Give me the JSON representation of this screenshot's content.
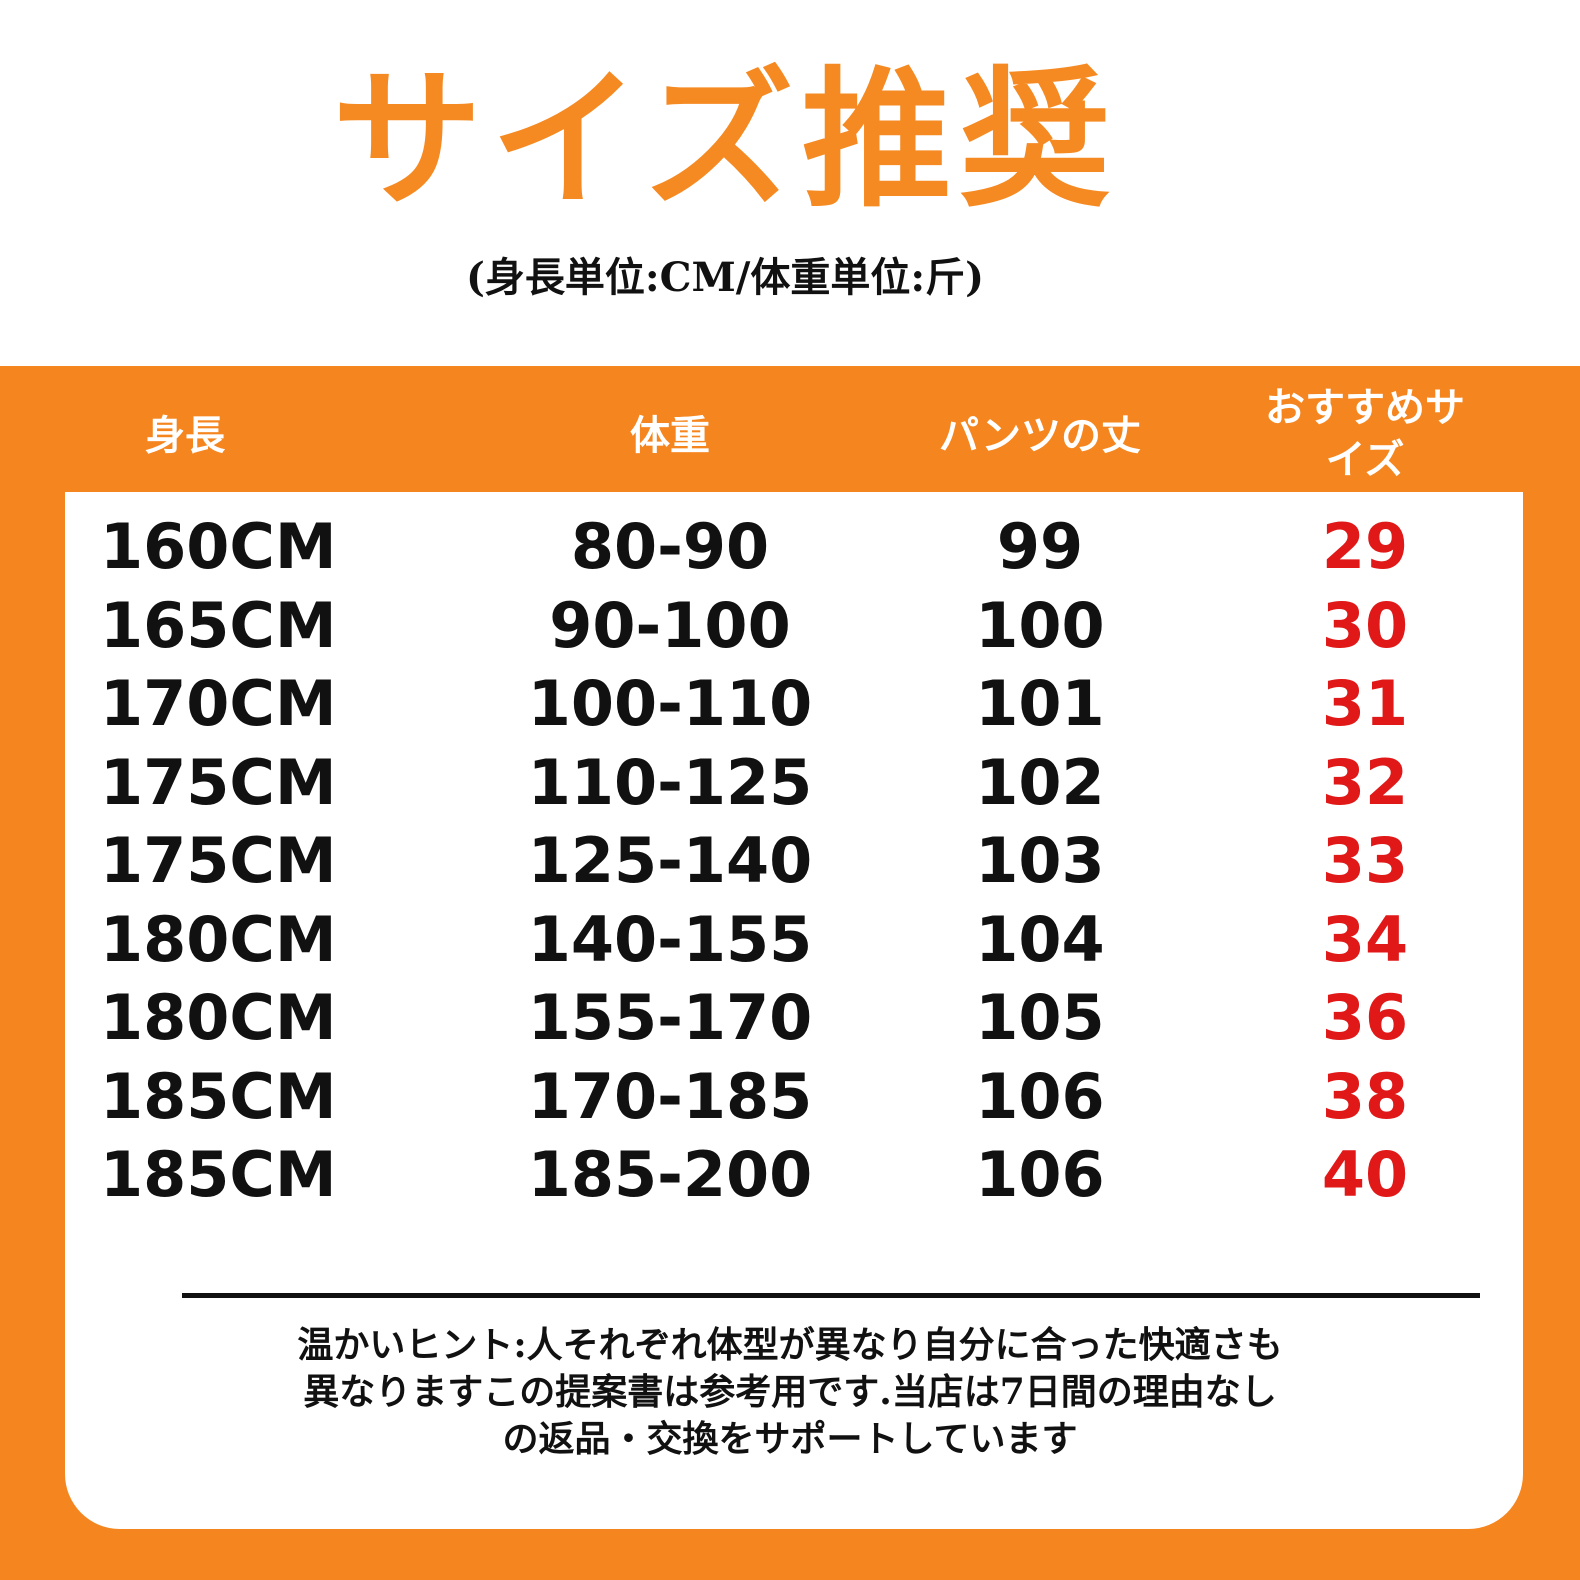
{
  "title": "サイズ推奨",
  "subtitle": "(身長単位:CM/体重単位:斤)",
  "colors": {
    "accent": "#f5861f",
    "size_text": "#e01818"
  },
  "table": {
    "headers": [
      "身長",
      "体重",
      "パンツの丈",
      "おすすめサイズ"
    ],
    "rows": [
      [
        "160CM",
        "80-90",
        "99",
        "29"
      ],
      [
        "165CM",
        "90-100",
        "100",
        "30"
      ],
      [
        "170CM",
        "100-110",
        "101",
        "31"
      ],
      [
        "175CM",
        "110-125",
        "102",
        "32"
      ],
      [
        "175CM",
        "125-140",
        "103",
        "33"
      ],
      [
        "180CM",
        "140-155",
        "104",
        "34"
      ],
      [
        "180CM",
        "155-170",
        "105",
        "36"
      ],
      [
        "185CM",
        "170-185",
        "106",
        "38"
      ],
      [
        "185CM",
        "185-200",
        "106",
        "40"
      ]
    ]
  },
  "note": "温かいヒント:人それぞれ体型が異なり自分に合った快適さも異なりますこの提案書は参考用です.当店は7日間の理由なしの返品・交換をサポートしています"
}
